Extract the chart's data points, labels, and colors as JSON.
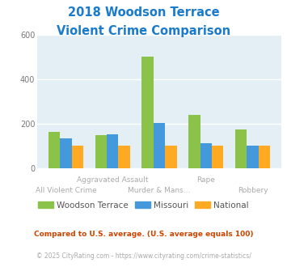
{
  "title_line1": "2018 Woodson Terrace",
  "title_line2": "Violent Crime Comparison",
  "categories": [
    "All Violent Crime",
    "Aggravated Assault",
    "Murder & Mans...",
    "Rape",
    "Robbery"
  ],
  "woodson_terrace": [
    165,
    148,
    500,
    238,
    175
  ],
  "missouri": [
    135,
    152,
    203,
    113,
    102
  ],
  "national": [
    100,
    100,
    100,
    100,
    100
  ],
  "colors": {
    "woodson_terrace": "#8bc34a",
    "missouri": "#4499dd",
    "national": "#ffaa22"
  },
  "ylim": [
    0,
    600
  ],
  "yticks": [
    0,
    200,
    400,
    600
  ],
  "title_color": "#1a7acc",
  "background_color": "#ffffff",
  "plot_bg_color": "#e4eff5",
  "grid_color": "#ffffff",
  "label_color": "#aaaaaa",
  "legend_labels": [
    "Woodson Terrace",
    "Missouri",
    "National"
  ],
  "legend_text_color": "#555555",
  "footnote1": "Compared to U.S. average. (U.S. average equals 100)",
  "footnote2": "© 2025 CityRating.com - https://www.cityrating.com/crime-statistics/",
  "footnote1_color": "#cc4400",
  "footnote2_color": "#aaaaaa",
  "x_labels_row1": [
    "",
    "Aggravated Assault",
    "",
    "Rape",
    ""
  ],
  "x_labels_row2": [
    "All Violent Crime",
    "",
    "Murder & Mans...",
    "",
    "Robbery"
  ]
}
